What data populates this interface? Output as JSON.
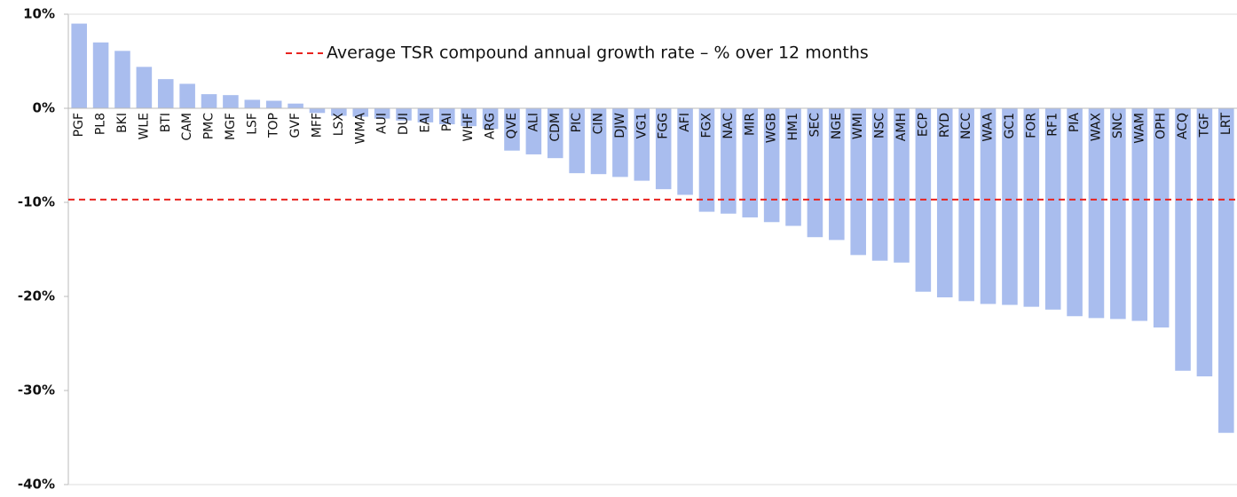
{
  "chart_data": {
    "type": "bar",
    "categories": [
      "PGF",
      "PL8",
      "BKI",
      "WLE",
      "BTI",
      "CAM",
      "PMC",
      "MGF",
      "LSF",
      "TOP",
      "GVF",
      "MFF",
      "LSX",
      "WMA",
      "AUI",
      "DUI",
      "EAI",
      "PAI",
      "WHF",
      "ARG",
      "QVE",
      "ALI",
      "CDM",
      "PIC",
      "CIN",
      "DJW",
      "VG1",
      "FGG",
      "AFI",
      "FGX",
      "NAC",
      "MIR",
      "WGB",
      "HM1",
      "SEC",
      "NGE",
      "WMI",
      "NSC",
      "AMH",
      "ECP",
      "RYD",
      "NCC",
      "WAA",
      "GC1",
      "FOR",
      "RF1",
      "PIA",
      "WAX",
      "SNC",
      "WAM",
      "OPH",
      "ACQ",
      "TGF",
      "LRT"
    ],
    "values": [
      9.0,
      7.0,
      6.1,
      4.4,
      3.1,
      2.6,
      1.5,
      1.4,
      0.9,
      0.8,
      0.5,
      -0.5,
      -0.8,
      -0.9,
      -1.1,
      -1.3,
      -1.5,
      -1.7,
      -1.9,
      -2.2,
      -4.5,
      -4.9,
      -5.3,
      -6.9,
      -7.0,
      -7.3,
      -7.7,
      -8.6,
      -9.2,
      -11.0,
      -11.2,
      -11.6,
      -12.1,
      -12.5,
      -13.7,
      -14.0,
      -15.6,
      -16.2,
      -16.4,
      -19.5,
      -20.1,
      -20.5,
      -20.8,
      -20.9,
      -21.1,
      -21.4,
      -22.1,
      -22.3,
      -22.4,
      -22.6,
      -23.3,
      -27.9,
      -28.5,
      -34.5
    ],
    "color": "#a9bdee",
    "ylim": [
      -40,
      10
    ],
    "yticks": [
      {
        "value": -40,
        "label": "-40%"
      },
      {
        "value": -30,
        "label": "-30%"
      },
      {
        "value": -20,
        "label": "-20%"
      },
      {
        "value": -10,
        "label": "-10%"
      },
      {
        "value": 0,
        "label": "0%"
      },
      {
        "value": 10,
        "label": "10%"
      }
    ],
    "grid": false,
    "average_line": {
      "label": "Average TSR compound annual growth rate – % over 12 months",
      "value": -9.7,
      "color": "#e8231f"
    }
  }
}
